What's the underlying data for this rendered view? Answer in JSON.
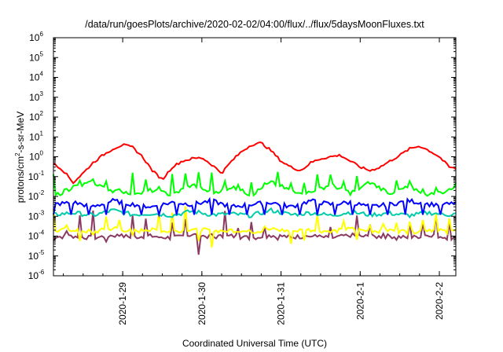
{
  "chart_data": {
    "type": "line",
    "title": "/data/run/goesPlots/archive/2020-02-02/04:00/flux/../flux/5daysMoonFluxes.txt",
    "xlabel": "Coordinated Universal Time (UTC)",
    "ylabel": {
      "prefix": "protons/cm",
      "superscript": "2",
      "suffix": "-s-sr-MeV"
    },
    "y_scale": "log",
    "ylim": [
      1e-06,
      1000000.0
    ],
    "y_ticks": [
      {
        "base": "10",
        "exp": "-6",
        "value": 1e-06
      },
      {
        "base": "10",
        "exp": "-5",
        "value": 1e-05
      },
      {
        "base": "10",
        "exp": "-4",
        "value": 0.0001
      },
      {
        "base": "10",
        "exp": "-3",
        "value": 0.001
      },
      {
        "base": "10",
        "exp": "-2",
        "value": 0.01
      },
      {
        "base": "10",
        "exp": "-1",
        "value": 0.1
      },
      {
        "base": "10",
        "exp": "0",
        "value": 1
      },
      {
        "base": "10",
        "exp": "1",
        "value": 10
      },
      {
        "base": "10",
        "exp": "2",
        "value": 100
      },
      {
        "base": "10",
        "exp": "3",
        "value": 1000
      },
      {
        "base": "10",
        "exp": "4",
        "value": 10000
      },
      {
        "base": "10",
        "exp": "5",
        "value": 100000
      },
      {
        "base": "10",
        "exp": "6",
        "value": 1000000
      }
    ],
    "x_range": [
      "2020-01-28T03:00",
      "2020-02-02T05:00"
    ],
    "x_ticks": [
      {
        "label": "2020-1-29",
        "date": "2020-01-29T00:00"
      },
      {
        "label": "2020-1-30",
        "date": "2020-01-30T00:00"
      },
      {
        "label": "2020-1-31",
        "date": "2020-01-31T00:00"
      },
      {
        "label": "2020-2-1",
        "date": "2020-02-01T00:00"
      },
      {
        "label": "2020-2-2",
        "date": "2020-02-02T00:00"
      }
    ],
    "grid": false,
    "legend": "none",
    "series": [
      {
        "color": "#ff0000",
        "x": [
          "2020-01-28T03:00",
          "2020-01-28T06:00",
          "2020-01-28T09:00",
          "2020-01-28T12:00",
          "2020-01-28T15:00",
          "2020-01-28T18:00",
          "2020-01-28T21:00",
          "2020-01-29T00:00",
          "2020-01-29T03:00",
          "2020-01-29T06:00",
          "2020-01-29T09:00",
          "2020-01-29T12:00",
          "2020-01-29T15:00",
          "2020-01-29T18:00",
          "2020-01-29T21:00",
          "2020-01-30T00:00",
          "2020-01-30T03:00",
          "2020-01-30T06:00",
          "2020-01-30T09:00",
          "2020-01-30T12:00",
          "2020-01-30T15:00",
          "2020-01-30T18:00",
          "2020-01-30T21:00",
          "2020-01-31T00:00",
          "2020-01-31T03:00",
          "2020-01-31T06:00",
          "2020-01-31T09:00",
          "2020-01-31T12:00",
          "2020-01-31T15:00",
          "2020-01-31T18:00",
          "2020-01-31T21:00",
          "2020-02-01T00:00",
          "2020-02-01T03:00",
          "2020-02-01T06:00",
          "2020-02-01T09:00",
          "2020-02-01T12:00",
          "2020-02-01T15:00",
          "2020-02-01T18:00",
          "2020-02-01T21:00",
          "2020-02-02T00:00",
          "2020-02-02T03:00",
          "2020-02-02T05:00"
        ],
        "values": [
          0.5,
          0.2,
          0.05,
          0.15,
          0.5,
          1.2,
          2.5,
          4.0,
          3.0,
          1.0,
          0.2,
          0.07,
          0.3,
          0.6,
          0.8,
          0.9,
          0.4,
          0.15,
          0.6,
          1.8,
          4.0,
          5.0,
          2.0,
          0.6,
          0.3,
          0.2,
          0.5,
          0.8,
          1.0,
          1.2,
          0.6,
          0.3,
          0.2,
          0.3,
          0.6,
          1.2,
          2.5,
          3.5,
          2.0,
          1.0,
          0.3,
          0.25
        ]
      },
      {
        "color": "#00ff00",
        "x": [
          "2020-01-28T03:00",
          "2020-01-28T09:00",
          "2020-01-28T15:00",
          "2020-01-28T21:00",
          "2020-01-29T03:00",
          "2020-01-29T09:00",
          "2020-01-29T15:00",
          "2020-01-29T21:00",
          "2020-01-30T03:00",
          "2020-01-30T09:00",
          "2020-01-30T15:00",
          "2020-01-30T21:00",
          "2020-01-31T03:00",
          "2020-01-31T09:00",
          "2020-01-31T15:00",
          "2020-01-31T21:00",
          "2020-02-01T03:00",
          "2020-02-01T09:00",
          "2020-02-01T15:00",
          "2020-02-01T21:00",
          "2020-02-02T03:00",
          "2020-02-02T05:00"
        ],
        "values": [
          0.01,
          0.03,
          0.05,
          0.02,
          0.015,
          0.02,
          0.012,
          0.04,
          0.015,
          0.03,
          0.012,
          0.05,
          0.02,
          0.015,
          0.04,
          0.015,
          0.05,
          0.015,
          0.03,
          0.012,
          0.02,
          0.04
        ]
      },
      {
        "color": "#0000ff",
        "x": [
          "2020-01-28T03:00",
          "2020-01-28T09:00",
          "2020-01-28T15:00",
          "2020-01-28T21:00",
          "2020-01-29T03:00",
          "2020-01-29T09:00",
          "2020-01-29T15:00",
          "2020-01-29T21:00",
          "2020-01-30T03:00",
          "2020-01-30T09:00",
          "2020-01-30T15:00",
          "2020-01-30T21:00",
          "2020-01-31T03:00",
          "2020-01-31T09:00",
          "2020-01-31T15:00",
          "2020-01-31T21:00",
          "2020-02-01T03:00",
          "2020-02-01T09:00",
          "2020-02-01T15:00",
          "2020-02-01T21:00",
          "2020-02-02T03:00",
          "2020-02-02T05:00"
        ],
        "values": [
          0.004,
          0.005,
          0.003,
          0.006,
          0.004,
          0.003,
          0.005,
          0.004,
          0.006,
          0.003,
          0.004,
          0.005,
          0.003,
          0.006,
          0.004,
          0.005,
          0.003,
          0.004,
          0.006,
          0.004,
          0.004,
          0.005
        ]
      },
      {
        "color": "#00ccaa",
        "x": [
          "2020-01-28T03:00",
          "2020-01-28T09:00",
          "2020-01-28T15:00",
          "2020-01-28T21:00",
          "2020-01-29T03:00",
          "2020-01-29T09:00",
          "2020-01-29T15:00",
          "2020-01-29T21:00",
          "2020-01-30T03:00",
          "2020-01-30T09:00",
          "2020-01-30T15:00",
          "2020-01-30T21:00",
          "2020-01-31T03:00",
          "2020-01-31T09:00",
          "2020-01-31T15:00",
          "2020-01-31T21:00",
          "2020-02-01T03:00",
          "2020-02-01T09:00",
          "2020-02-01T15:00",
          "2020-02-01T21:00",
          "2020-02-02T03:00",
          "2020-02-02T05:00"
        ],
        "values": [
          0.0012,
          0.0015,
          0.0011,
          0.002,
          0.0012,
          0.0014,
          0.0011,
          0.0018,
          0.0012,
          0.0013,
          0.0011,
          0.002,
          0.0012,
          0.0015,
          0.0011,
          0.0016,
          0.0012,
          0.0014,
          0.0011,
          0.0015,
          0.0012,
          0.0013
        ]
      },
      {
        "color": "#ffff00",
        "x": [
          "2020-01-28T03:00",
          "2020-01-28T09:00",
          "2020-01-28T15:00",
          "2020-01-28T21:00",
          "2020-01-29T03:00",
          "2020-01-29T09:00",
          "2020-01-29T15:00",
          "2020-01-29T21:00",
          "2020-01-30T03:00",
          "2020-01-30T09:00",
          "2020-01-30T15:00",
          "2020-01-30T21:00",
          "2020-01-31T03:00",
          "2020-01-31T09:00",
          "2020-01-31T15:00",
          "2020-01-31T21:00",
          "2020-02-01T03:00",
          "2020-02-01T09:00",
          "2020-02-01T15:00",
          "2020-02-01T21:00",
          "2020-02-02T03:00",
          "2020-02-02T05:00"
        ],
        "values": [
          0.00018,
          0.00022,
          0.00016,
          0.00025,
          0.00018,
          0.0002,
          0.00017,
          0.00024,
          0.00018,
          0.0002,
          0.00016,
          0.00022,
          0.00018,
          0.00021,
          0.00017,
          0.00023,
          0.00018,
          0.0002,
          0.00016,
          0.00022,
          0.00017,
          0.00019
        ]
      },
      {
        "color": "#8b3a62",
        "x": [
          "2020-01-28T03:00",
          "2020-01-28T09:00",
          "2020-01-28T15:00",
          "2020-01-28T21:00",
          "2020-01-29T03:00",
          "2020-01-29T09:00",
          "2020-01-29T15:00",
          "2020-01-29T21:00",
          "2020-01-30T03:00",
          "2020-01-30T09:00",
          "2020-01-30T15:00",
          "2020-01-30T21:00",
          "2020-01-31T03:00",
          "2020-01-31T09:00",
          "2020-01-31T15:00",
          "2020-01-31T21:00",
          "2020-02-01T03:00",
          "2020-02-01T09:00",
          "2020-02-01T15:00",
          "2020-02-01T21:00",
          "2020-02-02T03:00",
          "2020-02-02T05:00"
        ],
        "values": [
          9e-05,
          0.0001,
          8e-05,
          0.00011,
          9e-05,
          0.0001,
          8e-05,
          0.00012,
          9e-05,
          0.0001,
          8e-05,
          0.00011,
          9e-05,
          0.0001,
          8e-05,
          0.00011,
          9e-05,
          0.0001,
          8e-05,
          0.00012,
          8e-05,
          9e-05
        ]
      }
    ],
    "spikes": [
      {
        "color": "#00ff00",
        "peak": 0.08,
        "every_hours": 4
      },
      {
        "color": "#0000ff",
        "low": 0.0012,
        "every_hours": 5
      },
      {
        "color": "#ffff00",
        "peak": 0.0006,
        "every_hours": 4
      },
      {
        "color": "#8b3a62",
        "peak": 0.0004,
        "every_hours": 4
      }
    ]
  }
}
